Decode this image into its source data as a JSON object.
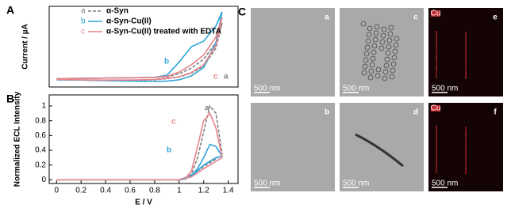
{
  "chart_data": [
    {
      "type": "line",
      "panel": "A",
      "ylabel": "Current / µA",
      "xlim": [
        -0.06,
        1.48
      ],
      "ylim": [
        -3,
        26
      ],
      "series": [
        {
          "label": "a",
          "name": "α-Syn",
          "color": "#808080",
          "dash": true,
          "x": [
            0,
            0.2,
            0.4,
            0.6,
            0.8,
            0.9,
            1.0,
            1.1,
            1.2,
            1.3,
            1.35,
            1.3,
            1.2,
            1.1,
            1.0,
            0.9,
            0.8,
            0.6,
            0.4,
            0.2,
            0
          ],
          "values": [
            0,
            0.1,
            0.2,
            0.3,
            0.4,
            0.6,
            1.8,
            3.8,
            7,
            13,
            20,
            11,
            4.5,
            2,
            0.6,
            0,
            -0.4,
            -0.6,
            -0.6,
            -0.5,
            -0.4
          ]
        },
        {
          "label": "b",
          "name": "α-Syn-Cu(II)",
          "color": "#2ea6d8",
          "dash": false,
          "x": [
            0,
            0.2,
            0.4,
            0.6,
            0.8,
            0.9,
            1.0,
            1.1,
            1.2,
            1.3,
            1.35,
            1.3,
            1.2,
            1.1,
            1.0,
            0.9,
            0.8,
            0.6,
            0.4,
            0.2,
            0
          ],
          "values": [
            0,
            0.1,
            0.2,
            0.3,
            0.5,
            1.2,
            6,
            11.5,
            13.5,
            19,
            24,
            13,
            4,
            1,
            -0.4,
            -0.9,
            -1,
            -0.9,
            -0.7,
            -0.5,
            -0.4
          ]
        },
        {
          "label": "c",
          "name": "α-Syn-Cu(II) treated with EDTA",
          "color": "#e8848a",
          "dash": false,
          "x": [
            0,
            0.2,
            0.4,
            0.6,
            0.8,
            0.9,
            1.0,
            1.1,
            1.2,
            1.3,
            1.35,
            1.3,
            1.2,
            1.1,
            1.0,
            0.9,
            0.8,
            0.6,
            0.4,
            0.2,
            0
          ],
          "values": [
            0,
            0.1,
            0.2,
            0.3,
            0.5,
            0.8,
            2.4,
            5,
            8.5,
            15,
            22,
            12,
            5,
            2.2,
            0.7,
            0.1,
            -0.3,
            -0.5,
            -0.5,
            -0.4,
            -0.3
          ]
        }
      ],
      "curve_labels": [
        {
          "series": "b",
          "text": "b"
        },
        {
          "series": "c",
          "text": "c"
        },
        {
          "series": "a",
          "text": "a"
        }
      ]
    },
    {
      "type": "line",
      "panel": "B",
      "ylabel": "Normalized ECL Intensity",
      "xlabel": "E / V",
      "xlim": [
        -0.06,
        1.48
      ],
      "ylim": [
        -0.05,
        1.15
      ],
      "xticks": [
        0.0,
        0.2,
        0.4,
        0.6,
        0.8,
        1.0,
        1.2,
        1.4
      ],
      "yticks": [
        0.0,
        0.2,
        0.4,
        0.6,
        0.8,
        1.0
      ],
      "series": [
        {
          "label": "a",
          "color": "#808080",
          "dash": true,
          "x": [
            0,
            0.4,
            0.8,
            1.0,
            1.05,
            1.1,
            1.15,
            1.2,
            1.25,
            1.3,
            1.35,
            1.3,
            1.2,
            1.1,
            1.0,
            0.8,
            0.4,
            0
          ],
          "values": [
            0,
            0,
            0,
            0,
            0.01,
            0.08,
            0.3,
            0.65,
            1.0,
            0.9,
            0.35,
            0.28,
            0.18,
            0.06,
            0,
            0,
            0,
            0
          ]
        },
        {
          "label": "b",
          "color": "#2ea6d8",
          "dash": false,
          "x": [
            0,
            0.4,
            0.8,
            1.0,
            1.05,
            1.1,
            1.15,
            1.2,
            1.25,
            1.3,
            1.35,
            1.3,
            1.2,
            1.1,
            1.0,
            0.8,
            0.4,
            0
          ],
          "values": [
            0,
            0,
            0,
            0,
            0.01,
            0.06,
            0.15,
            0.3,
            0.48,
            0.45,
            0.32,
            0.3,
            0.2,
            0.05,
            0,
            0,
            0,
            0
          ]
        },
        {
          "label": "c",
          "color": "#e8848a",
          "dash": false,
          "x": [
            0,
            0.4,
            0.8,
            1.0,
            1.05,
            1.1,
            1.15,
            1.2,
            1.25,
            1.3,
            1.35,
            1.3,
            1.2,
            1.1,
            1.0,
            0.8,
            0.4,
            0
          ],
          "values": [
            0,
            0,
            0,
            0,
            0.02,
            0.12,
            0.45,
            0.8,
            0.9,
            0.7,
            0.3,
            0.25,
            0.15,
            0.04,
            0,
            0,
            0,
            0
          ]
        }
      ]
    }
  ],
  "figure_panel_c": {
    "panel": "C",
    "images": [
      {
        "label": "a",
        "scale_bar": "500 nm",
        "kind": "tem"
      },
      {
        "label": "c",
        "scale_bar": "500 nm",
        "kind": "tem"
      },
      {
        "label": "e",
        "scale_bar": "500 nm",
        "kind": "map",
        "tag": "Cu"
      },
      {
        "label": "b",
        "scale_bar": "500 nm",
        "kind": "tem"
      },
      {
        "label": "d",
        "scale_bar": "500 nm",
        "kind": "tem"
      },
      {
        "label": "f",
        "scale_bar": "500 nm",
        "kind": "map",
        "tag": "Cu"
      }
    ]
  }
}
